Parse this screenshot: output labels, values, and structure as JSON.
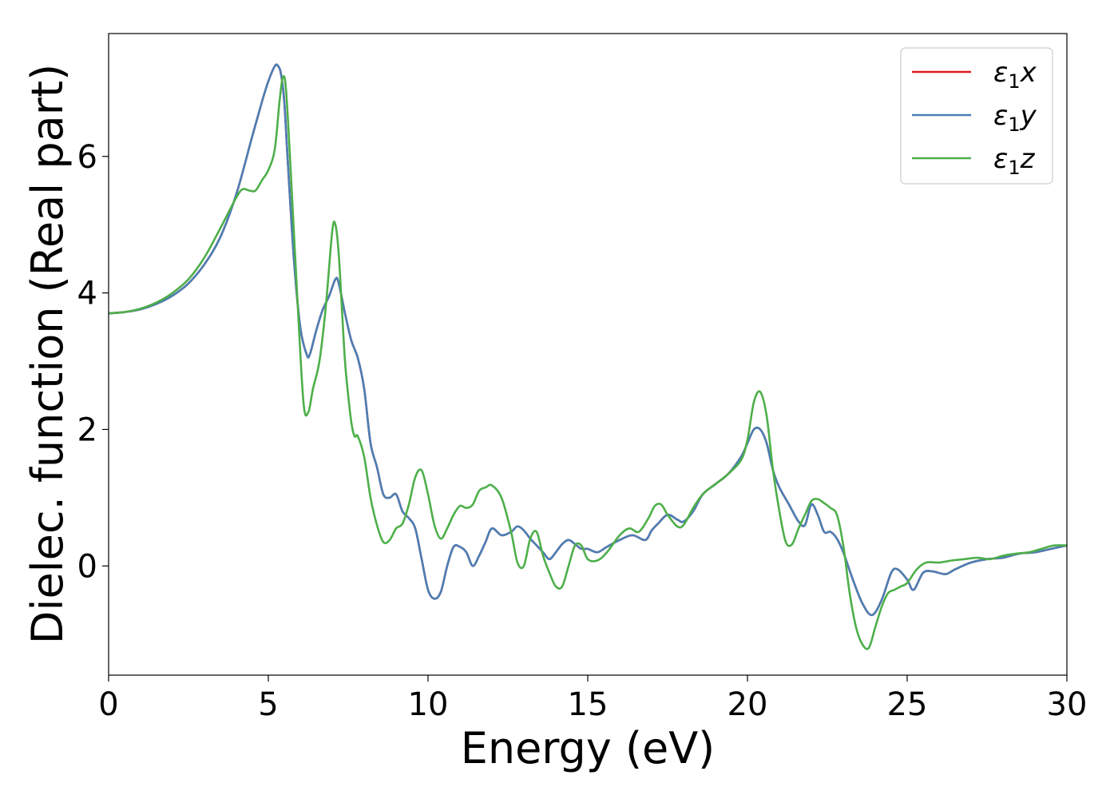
{
  "chart_data": {
    "type": "line",
    "title": "",
    "xlabel": "Energy (eV)",
    "ylabel": "Dielec. function (Real part)",
    "xlim": [
      0,
      30
    ],
    "ylim": [
      -1.6,
      7.8
    ],
    "xticks": [
      0,
      5,
      10,
      15,
      20,
      25,
      30
    ],
    "yticks": [
      0,
      2,
      4,
      6
    ],
    "grid": false,
    "legend_position": "top-right",
    "series": [
      {
        "name": "ε₁x",
        "legend_main": "ε",
        "legend_sub": "1",
        "legend_axis": "x",
        "color": "#e41a1c",
        "x": [
          0,
          0.5,
          1,
          1.5,
          2,
          2.5,
          3,
          3.5,
          4,
          4.5,
          4.8,
          5.0,
          5.2,
          5.3,
          5.4,
          5.5,
          5.6,
          5.8,
          6.0,
          6.2,
          6.3,
          6.5,
          6.7,
          6.9,
          7.1,
          7.2,
          7.4,
          7.6,
          7.8,
          8.0,
          8.2,
          8.4,
          8.6,
          8.8,
          9.0,
          9.2,
          9.4,
          9.6,
          9.8,
          10.0,
          10.2,
          10.4,
          10.6,
          10.8,
          11.0,
          11.2,
          11.4,
          11.6,
          11.8,
          12.0,
          12.3,
          12.6,
          12.8,
          13.0,
          13.2,
          13.4,
          13.6,
          13.8,
          14.0,
          14.2,
          14.4,
          14.6,
          14.8,
          15.0,
          15.3,
          15.6,
          16.0,
          16.4,
          16.8,
          17.0,
          17.2,
          17.5,
          17.8,
          18.0,
          18.3,
          18.6,
          19.0,
          19.4,
          19.8,
          20.0,
          20.2,
          20.4,
          20.6,
          20.8,
          21.0,
          21.3,
          21.6,
          21.8,
          22.0,
          22.2,
          22.4,
          22.6,
          22.8,
          23.0,
          23.3,
          23.6,
          23.9,
          24.2,
          24.5,
          24.7,
          25.0,
          25.2,
          25.5,
          25.8,
          26.2,
          26.5,
          27.0,
          27.5,
          28.0,
          28.5,
          29.0,
          29.5,
          30.0
        ],
        "y": [
          3.7,
          3.72,
          3.76,
          3.84,
          3.96,
          4.14,
          4.42,
          4.82,
          5.45,
          6.3,
          6.8,
          7.1,
          7.32,
          7.33,
          7.2,
          6.8,
          6.0,
          4.5,
          3.5,
          3.1,
          3.1,
          3.45,
          3.75,
          3.95,
          4.2,
          4.15,
          3.7,
          3.3,
          3.05,
          2.6,
          1.8,
          1.45,
          1.05,
          1.0,
          1.05,
          0.8,
          0.7,
          0.55,
          0.1,
          -0.35,
          -0.48,
          -0.38,
          0.0,
          0.28,
          0.28,
          0.2,
          0.0,
          0.15,
          0.35,
          0.55,
          0.45,
          0.5,
          0.58,
          0.52,
          0.4,
          0.3,
          0.2,
          0.1,
          0.2,
          0.32,
          0.38,
          0.32,
          0.25,
          0.25,
          0.2,
          0.28,
          0.38,
          0.45,
          0.38,
          0.52,
          0.62,
          0.75,
          0.68,
          0.65,
          0.8,
          1.05,
          1.2,
          1.35,
          1.6,
          1.8,
          2.0,
          2.0,
          1.8,
          1.4,
          1.15,
          0.9,
          0.65,
          0.6,
          0.9,
          0.75,
          0.5,
          0.5,
          0.4,
          0.2,
          -0.2,
          -0.55,
          -0.72,
          -0.5,
          -0.1,
          -0.05,
          -0.2,
          -0.35,
          -0.1,
          -0.08,
          -0.12,
          -0.05,
          0.05,
          0.1,
          0.12,
          0.18,
          0.2,
          0.25,
          0.3
        ]
      },
      {
        "name": "ε₁y",
        "legend_main": "ε",
        "legend_sub": "1",
        "legend_axis": "y",
        "color": "#4a7fb5",
        "x": [
          0,
          0.5,
          1,
          1.5,
          2,
          2.5,
          3,
          3.5,
          4,
          4.5,
          4.8,
          5.0,
          5.2,
          5.3,
          5.4,
          5.5,
          5.6,
          5.8,
          6.0,
          6.2,
          6.3,
          6.5,
          6.7,
          6.9,
          7.1,
          7.2,
          7.4,
          7.6,
          7.8,
          8.0,
          8.2,
          8.4,
          8.6,
          8.8,
          9.0,
          9.2,
          9.4,
          9.6,
          9.8,
          10.0,
          10.2,
          10.4,
          10.6,
          10.8,
          11.0,
          11.2,
          11.4,
          11.6,
          11.8,
          12.0,
          12.3,
          12.6,
          12.8,
          13.0,
          13.2,
          13.4,
          13.6,
          13.8,
          14.0,
          14.2,
          14.4,
          14.6,
          14.8,
          15.0,
          15.3,
          15.6,
          16.0,
          16.4,
          16.8,
          17.0,
          17.2,
          17.5,
          17.8,
          18.0,
          18.3,
          18.6,
          19.0,
          19.4,
          19.8,
          20.0,
          20.2,
          20.4,
          20.6,
          20.8,
          21.0,
          21.3,
          21.6,
          21.8,
          22.0,
          22.2,
          22.4,
          22.6,
          22.8,
          23.0,
          23.3,
          23.6,
          23.9,
          24.2,
          24.5,
          24.7,
          25.0,
          25.2,
          25.5,
          25.8,
          26.2,
          26.5,
          27.0,
          27.5,
          28.0,
          28.5,
          29.0,
          29.5,
          30.0
        ],
        "y": [
          3.7,
          3.72,
          3.76,
          3.84,
          3.96,
          4.14,
          4.42,
          4.82,
          5.45,
          6.3,
          6.8,
          7.1,
          7.32,
          7.33,
          7.2,
          6.8,
          6.0,
          4.5,
          3.5,
          3.1,
          3.1,
          3.45,
          3.75,
          3.95,
          4.2,
          4.15,
          3.7,
          3.3,
          3.05,
          2.6,
          1.8,
          1.45,
          1.05,
          1.0,
          1.05,
          0.8,
          0.7,
          0.55,
          0.1,
          -0.35,
          -0.48,
          -0.38,
          0.0,
          0.28,
          0.28,
          0.2,
          0.0,
          0.15,
          0.35,
          0.55,
          0.45,
          0.5,
          0.58,
          0.52,
          0.4,
          0.3,
          0.2,
          0.1,
          0.2,
          0.32,
          0.38,
          0.32,
          0.25,
          0.25,
          0.2,
          0.28,
          0.38,
          0.45,
          0.38,
          0.52,
          0.62,
          0.75,
          0.68,
          0.65,
          0.8,
          1.05,
          1.2,
          1.35,
          1.6,
          1.8,
          2.0,
          2.0,
          1.8,
          1.4,
          1.15,
          0.9,
          0.65,
          0.6,
          0.9,
          0.75,
          0.5,
          0.5,
          0.4,
          0.2,
          -0.2,
          -0.55,
          -0.72,
          -0.5,
          -0.1,
          -0.05,
          -0.2,
          -0.35,
          -0.1,
          -0.08,
          -0.12,
          -0.05,
          0.05,
          0.1,
          0.12,
          0.18,
          0.2,
          0.25,
          0.3
        ]
      },
      {
        "name": "ε₁z",
        "legend_main": "ε",
        "legend_sub": "1",
        "legend_axis": "z",
        "color": "#4daf4a",
        "x": [
          0,
          0.5,
          1,
          1.5,
          2,
          2.5,
          3,
          3.5,
          4,
          4.2,
          4.4,
          4.6,
          4.8,
          5.0,
          5.2,
          5.35,
          5.45,
          5.55,
          5.7,
          5.9,
          6.1,
          6.25,
          6.4,
          6.6,
          6.8,
          7.0,
          7.1,
          7.2,
          7.3,
          7.4,
          7.5,
          7.6,
          7.7,
          7.8,
          8.0,
          8.2,
          8.4,
          8.6,
          8.8,
          9.0,
          9.2,
          9.4,
          9.6,
          9.8,
          10.0,
          10.2,
          10.4,
          10.6,
          10.8,
          11.0,
          11.2,
          11.4,
          11.6,
          11.8,
          12.0,
          12.3,
          12.6,
          12.8,
          13.0,
          13.2,
          13.4,
          13.6,
          13.8,
          14.0,
          14.2,
          14.4,
          14.6,
          14.8,
          15.0,
          15.3,
          15.6,
          16.0,
          16.3,
          16.6,
          16.9,
          17.1,
          17.3,
          17.5,
          17.8,
          18.0,
          18.3,
          18.6,
          19.0,
          19.4,
          19.8,
          20.0,
          20.2,
          20.4,
          20.6,
          20.8,
          21.0,
          21.2,
          21.4,
          21.6,
          21.8,
          22.0,
          22.2,
          22.4,
          22.6,
          22.8,
          23.0,
          23.2,
          23.4,
          23.6,
          23.8,
          24.0,
          24.2,
          24.4,
          24.6,
          24.8,
          25.0,
          25.3,
          25.6,
          26.0,
          26.4,
          26.8,
          27.2,
          27.6,
          28.0,
          28.4,
          28.8,
          29.2,
          29.6,
          30.0
        ],
        "y": [
          3.7,
          3.72,
          3.77,
          3.86,
          4.0,
          4.2,
          4.52,
          4.95,
          5.4,
          5.52,
          5.5,
          5.5,
          5.65,
          5.8,
          6.1,
          6.8,
          7.15,
          7.0,
          5.8,
          4.0,
          2.4,
          2.25,
          2.6,
          3.0,
          3.8,
          4.9,
          5.0,
          4.6,
          3.8,
          3.0,
          2.5,
          2.1,
          1.9,
          1.9,
          1.6,
          1.0,
          0.6,
          0.35,
          0.38,
          0.55,
          0.62,
          0.9,
          1.3,
          1.4,
          1.05,
          0.6,
          0.4,
          0.55,
          0.75,
          0.88,
          0.85,
          0.9,
          1.1,
          1.15,
          1.18,
          1.0,
          0.5,
          0.05,
          0.0,
          0.4,
          0.5,
          0.15,
          -0.1,
          -0.3,
          -0.3,
          0.0,
          0.3,
          0.3,
          0.1,
          0.08,
          0.2,
          0.45,
          0.55,
          0.5,
          0.7,
          0.88,
          0.9,
          0.75,
          0.58,
          0.6,
          0.85,
          1.05,
          1.2,
          1.35,
          1.55,
          1.85,
          2.4,
          2.55,
          2.2,
          1.4,
          0.8,
          0.35,
          0.32,
          0.55,
          0.75,
          0.95,
          0.98,
          0.92,
          0.85,
          0.75,
          0.3,
          -0.4,
          -0.9,
          -1.15,
          -1.2,
          -0.9,
          -0.6,
          -0.4,
          -0.35,
          -0.3,
          -0.25,
          -0.05,
          0.05,
          0.05,
          0.08,
          0.1,
          0.12,
          0.1,
          0.15,
          0.18,
          0.2,
          0.25,
          0.3,
          0.3
        ]
      }
    ]
  }
}
